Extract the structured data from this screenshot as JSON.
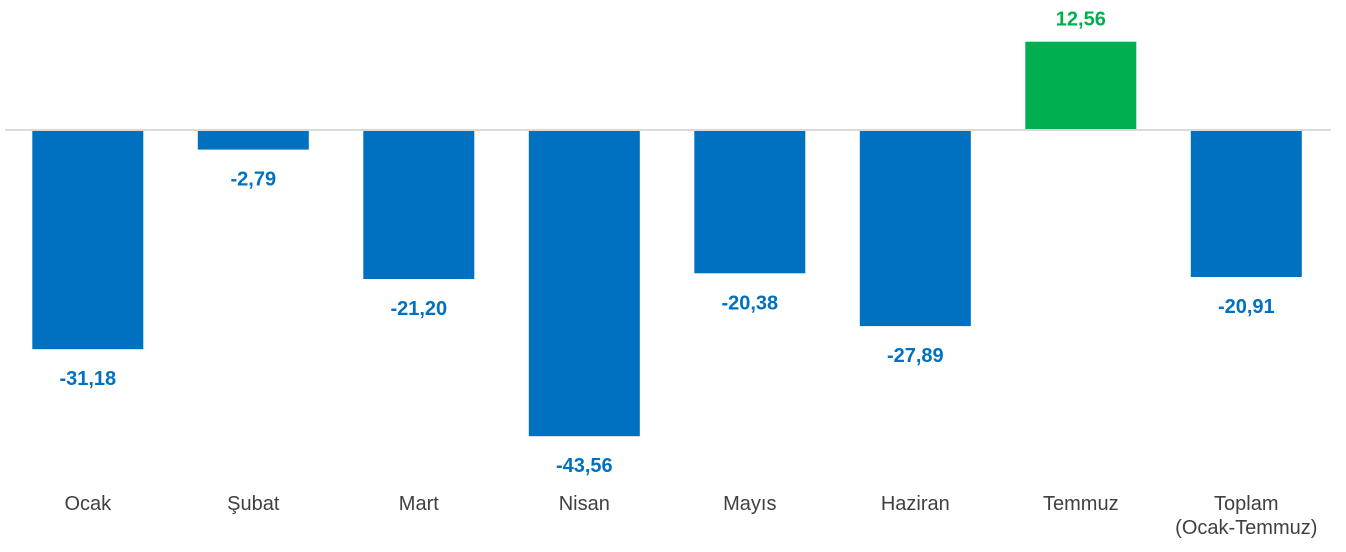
{
  "chart_data": {
    "type": "bar",
    "categories": [
      [
        "Ocak"
      ],
      [
        "Şubat"
      ],
      [
        "Mart"
      ],
      [
        "Nisan"
      ],
      [
        "Mayıs"
      ],
      [
        "Haziran"
      ],
      [
        "Temmuz"
      ],
      [
        "Toplam",
        "(Ocak-Temmuz)"
      ]
    ],
    "values": [
      -31.18,
      -2.79,
      -21.2,
      -43.56,
      -20.38,
      -27.89,
      12.56,
      -20.91
    ],
    "value_labels": [
      "-31,18",
      "-2,79",
      "-21,20",
      "-43,56",
      "-20,38",
      "-27,89",
      "12,56",
      "-20,91"
    ],
    "ylim": [
      -48,
      15
    ],
    "grid": false,
    "legend": "none",
    "colors": {
      "negative": "#0070C0",
      "positive": "#00B050",
      "axis": "#D9D9D9",
      "category_text": "#404040"
    }
  }
}
